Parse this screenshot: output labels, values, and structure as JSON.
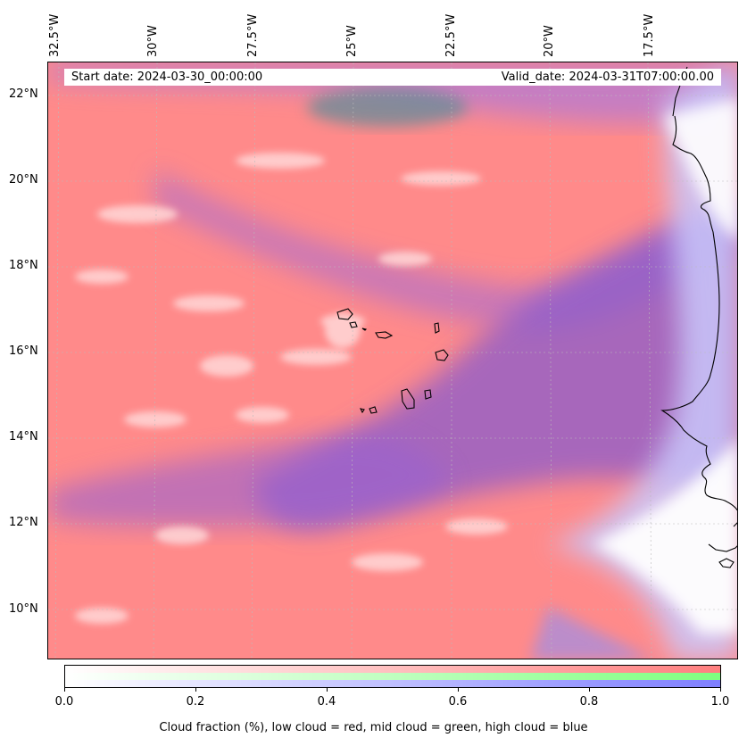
{
  "map": {
    "start_date": "Start date: 2024-03-30_00:00:00",
    "valid_date": "Valid_date: 2024-03-31T07:00:00.00",
    "lat_labels": [
      "22°N",
      "20°N",
      "18°N",
      "16°N",
      "14°N",
      "12°N",
      "10°N"
    ],
    "lon_labels": [
      "32.5°W",
      "30°W",
      "27.5°W",
      "25°W",
      "22.5°W",
      "20°W",
      "17.5°W"
    ],
    "colors": {
      "low_cloud": "#ff7f7f",
      "mid_cloud": "#7fff7f",
      "high_cloud": "#7f7fff",
      "coastline": "#000000"
    }
  },
  "colorbar": {
    "ticks": [
      "0.0",
      "0.2",
      "0.4",
      "0.6",
      "0.8",
      "1.0"
    ],
    "title": "Cloud fraction (%), low cloud = red, mid cloud = green, high cloud = blue"
  }
}
